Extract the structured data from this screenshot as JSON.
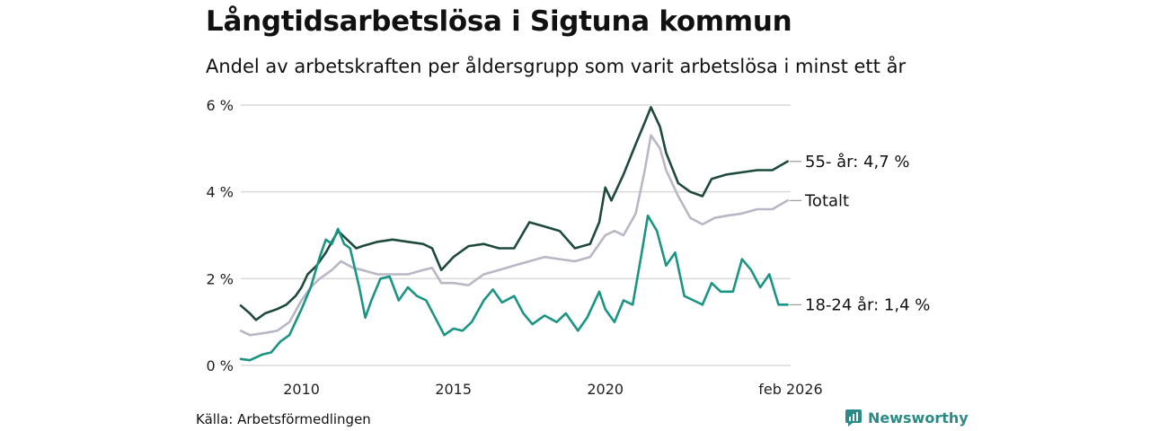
{
  "chart_data": {
    "type": "line",
    "title": "Långtidsarbetslösa i Sigtuna kommun",
    "subtitle": "Andel av arbetskraften per åldersgrupp som varit arbetslösa i minst ett år",
    "source": "Källa: Arbetsförmedlingen",
    "brand": "Newsworthy",
    "ylim": [
      0,
      6
    ],
    "xlim": [
      2008.0,
      2026.1
    ],
    "yticks": [
      {
        "value": 0,
        "label": "0 %"
      },
      {
        "value": 2,
        "label": "2 %"
      },
      {
        "value": 4,
        "label": "4 %"
      },
      {
        "value": 6,
        "label": "6 %"
      }
    ],
    "xticks": [
      {
        "value": 2010,
        "label": "2010"
      },
      {
        "value": 2015,
        "label": "2015"
      },
      {
        "value": 2020,
        "label": "2020"
      },
      {
        "value": 2026.1,
        "label": "feb 2026"
      }
    ],
    "series": [
      {
        "name": "55- år",
        "end_label": "55- år: 4,7 %",
        "color": "#1d4a3c",
        "points": [
          [
            2008.0,
            1.38
          ],
          [
            2008.3,
            1.2
          ],
          [
            2008.5,
            1.05
          ],
          [
            2008.8,
            1.2
          ],
          [
            2009.2,
            1.3
          ],
          [
            2009.5,
            1.4
          ],
          [
            2009.8,
            1.6
          ],
          [
            2010.0,
            1.8
          ],
          [
            2010.2,
            2.1
          ],
          [
            2010.5,
            2.3
          ],
          [
            2010.8,
            2.6
          ],
          [
            2011.0,
            2.85
          ],
          [
            2011.2,
            3.1
          ],
          [
            2011.5,
            2.9
          ],
          [
            2011.8,
            2.7
          ],
          [
            2012.0,
            2.75
          ],
          [
            2012.5,
            2.85
          ],
          [
            2013.0,
            2.9
          ],
          [
            2013.5,
            2.85
          ],
          [
            2014.0,
            2.8
          ],
          [
            2014.3,
            2.7
          ],
          [
            2014.6,
            2.2
          ],
          [
            2015.0,
            2.5
          ],
          [
            2015.5,
            2.75
          ],
          [
            2016.0,
            2.8
          ],
          [
            2016.5,
            2.7
          ],
          [
            2017.0,
            2.7
          ],
          [
            2017.5,
            3.3
          ],
          [
            2018.0,
            3.2
          ],
          [
            2018.5,
            3.1
          ],
          [
            2019.0,
            2.7
          ],
          [
            2019.5,
            2.8
          ],
          [
            2019.8,
            3.3
          ],
          [
            2020.0,
            4.1
          ],
          [
            2020.2,
            3.8
          ],
          [
            2020.6,
            4.4
          ],
          [
            2021.0,
            5.1
          ],
          [
            2021.3,
            5.6
          ],
          [
            2021.5,
            5.95
          ],
          [
            2021.8,
            5.5
          ],
          [
            2022.0,
            4.9
          ],
          [
            2022.4,
            4.2
          ],
          [
            2022.8,
            4.0
          ],
          [
            2023.2,
            3.9
          ],
          [
            2023.5,
            4.3
          ],
          [
            2024.0,
            4.4
          ],
          [
            2024.5,
            4.45
          ],
          [
            2025.0,
            4.5
          ],
          [
            2025.5,
            4.5
          ],
          [
            2026.0,
            4.7
          ]
        ]
      },
      {
        "name": "Totalt",
        "end_label": "Totalt",
        "color": "#b9b7c5",
        "points": [
          [
            2008.0,
            0.8
          ],
          [
            2008.3,
            0.7
          ],
          [
            2008.8,
            0.75
          ],
          [
            2009.2,
            0.8
          ],
          [
            2009.6,
            1.0
          ],
          [
            2010.0,
            1.5
          ],
          [
            2010.3,
            1.8
          ],
          [
            2010.6,
            2.0
          ],
          [
            2011.0,
            2.2
          ],
          [
            2011.3,
            2.4
          ],
          [
            2011.7,
            2.25
          ],
          [
            2012.0,
            2.2
          ],
          [
            2012.5,
            2.1
          ],
          [
            2013.0,
            2.1
          ],
          [
            2013.5,
            2.1
          ],
          [
            2014.0,
            2.2
          ],
          [
            2014.3,
            2.25
          ],
          [
            2014.6,
            1.9
          ],
          [
            2015.0,
            1.9
          ],
          [
            2015.5,
            1.85
          ],
          [
            2016.0,
            2.1
          ],
          [
            2016.5,
            2.2
          ],
          [
            2017.0,
            2.3
          ],
          [
            2017.5,
            2.4
          ],
          [
            2018.0,
            2.5
          ],
          [
            2018.5,
            2.45
          ],
          [
            2019.0,
            2.4
          ],
          [
            2019.5,
            2.5
          ],
          [
            2020.0,
            3.0
          ],
          [
            2020.3,
            3.1
          ],
          [
            2020.6,
            3.0
          ],
          [
            2021.0,
            3.5
          ],
          [
            2021.3,
            4.5
          ],
          [
            2021.5,
            5.3
          ],
          [
            2021.8,
            5.0
          ],
          [
            2022.0,
            4.5
          ],
          [
            2022.4,
            3.9
          ],
          [
            2022.8,
            3.4
          ],
          [
            2023.2,
            3.25
          ],
          [
            2023.6,
            3.4
          ],
          [
            2024.0,
            3.45
          ],
          [
            2024.5,
            3.5
          ],
          [
            2025.0,
            3.6
          ],
          [
            2025.5,
            3.6
          ],
          [
            2026.0,
            3.8
          ]
        ]
      },
      {
        "name": "18-24 år",
        "end_label": "18-24 år: 1,4 %",
        "color": "#1a9483",
        "points": [
          [
            2008.0,
            0.15
          ],
          [
            2008.3,
            0.12
          ],
          [
            2008.7,
            0.25
          ],
          [
            2009.0,
            0.3
          ],
          [
            2009.3,
            0.55
          ],
          [
            2009.6,
            0.7
          ],
          [
            2010.0,
            1.3
          ],
          [
            2010.3,
            1.8
          ],
          [
            2010.6,
            2.5
          ],
          [
            2010.8,
            2.9
          ],
          [
            2011.0,
            2.8
          ],
          [
            2011.2,
            3.15
          ],
          [
            2011.4,
            2.8
          ],
          [
            2011.6,
            2.7
          ],
          [
            2011.9,
            1.8
          ],
          [
            2012.1,
            1.1
          ],
          [
            2012.3,
            1.5
          ],
          [
            2012.6,
            2.0
          ],
          [
            2012.9,
            2.05
          ],
          [
            2013.2,
            1.5
          ],
          [
            2013.5,
            1.8
          ],
          [
            2013.8,
            1.6
          ],
          [
            2014.1,
            1.5
          ],
          [
            2014.4,
            1.1
          ],
          [
            2014.7,
            0.7
          ],
          [
            2015.0,
            0.85
          ],
          [
            2015.3,
            0.8
          ],
          [
            2015.6,
            1.0
          ],
          [
            2016.0,
            1.5
          ],
          [
            2016.3,
            1.75
          ],
          [
            2016.6,
            1.45
          ],
          [
            2017.0,
            1.6
          ],
          [
            2017.3,
            1.2
          ],
          [
            2017.6,
            0.95
          ],
          [
            2018.0,
            1.15
          ],
          [
            2018.4,
            1.0
          ],
          [
            2018.7,
            1.2
          ],
          [
            2019.1,
            0.8
          ],
          [
            2019.4,
            1.1
          ],
          [
            2019.8,
            1.7
          ],
          [
            2020.0,
            1.3
          ],
          [
            2020.3,
            1.0
          ],
          [
            2020.6,
            1.5
          ],
          [
            2020.9,
            1.4
          ],
          [
            2021.2,
            2.6
          ],
          [
            2021.4,
            3.45
          ],
          [
            2021.7,
            3.1
          ],
          [
            2022.0,
            2.3
          ],
          [
            2022.3,
            2.6
          ],
          [
            2022.6,
            1.6
          ],
          [
            2022.9,
            1.5
          ],
          [
            2023.2,
            1.4
          ],
          [
            2023.5,
            1.9
          ],
          [
            2023.8,
            1.7
          ],
          [
            2024.2,
            1.7
          ],
          [
            2024.5,
            2.45
          ],
          [
            2024.8,
            2.2
          ],
          [
            2025.1,
            1.8
          ],
          [
            2025.4,
            2.1
          ],
          [
            2025.7,
            1.4
          ],
          [
            2026.0,
            1.4
          ]
        ]
      }
    ]
  }
}
